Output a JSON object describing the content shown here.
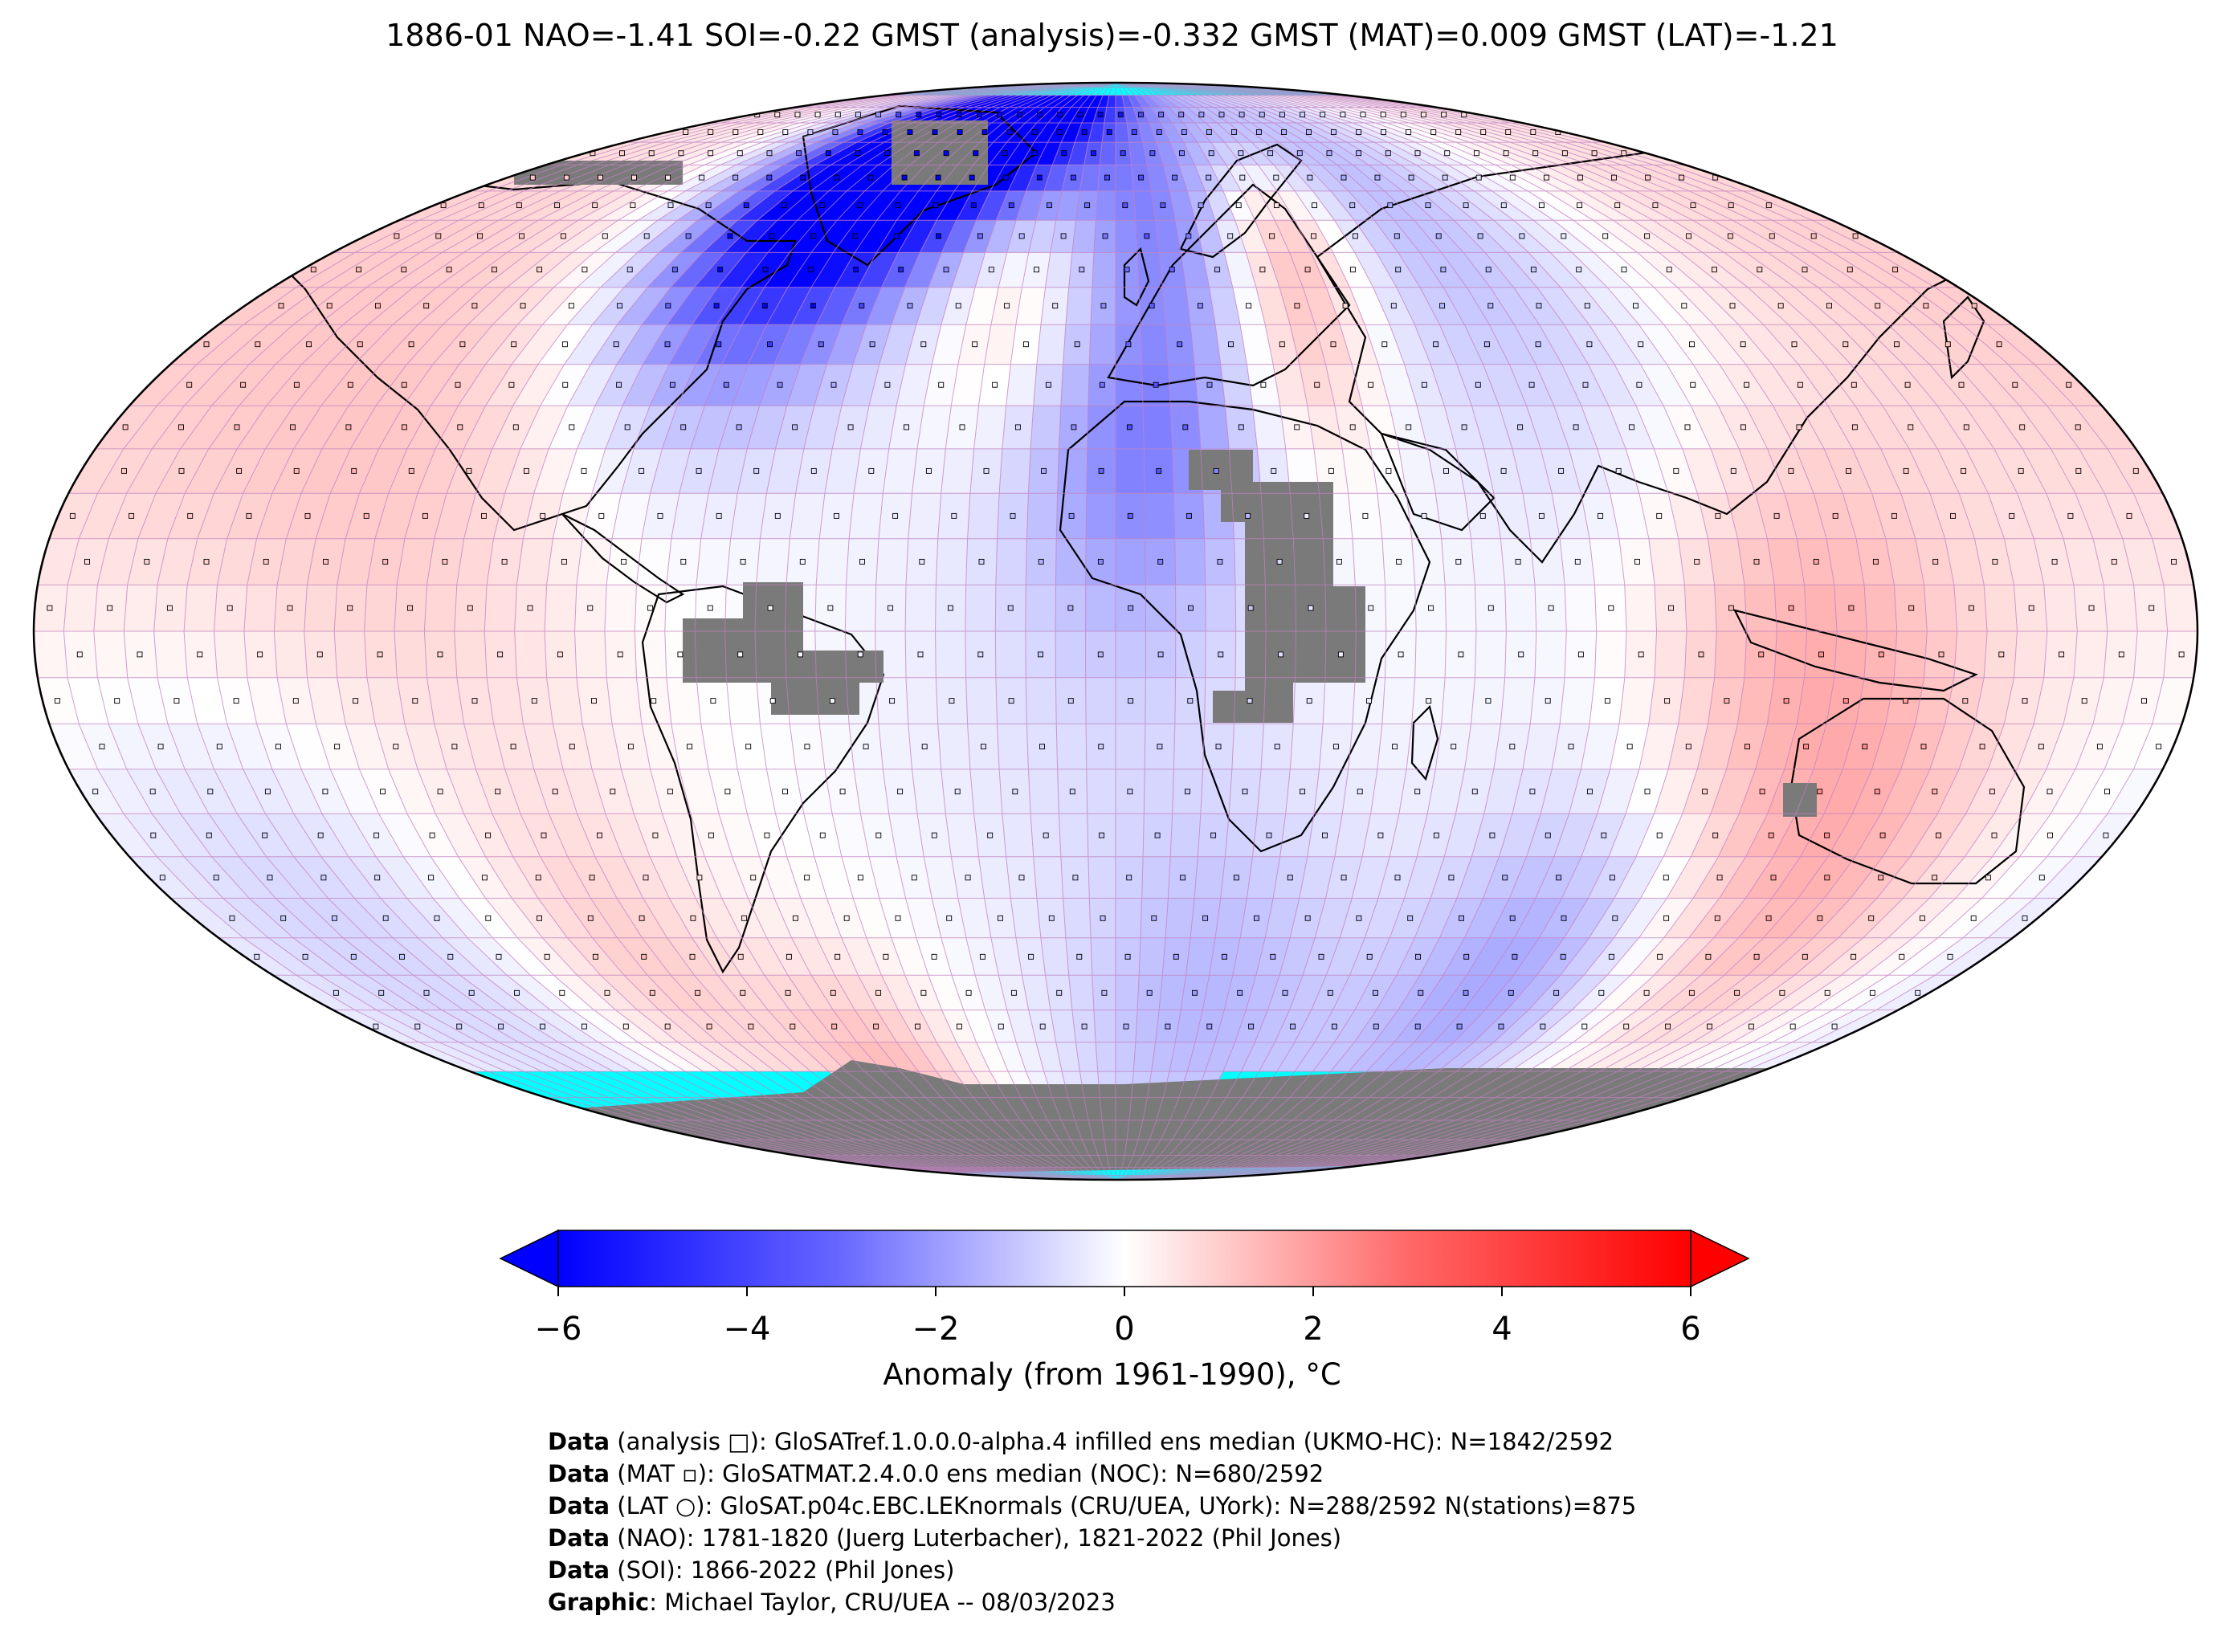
{
  "title": "1886-01 NAO=-1.41 SOI=-0.22 GMST (analysis)=-0.332 GMST (MAT)=0.009 GMST (LAT)=-1.21",
  "colorbar": {
    "ticks": [
      "−6",
      "−4",
      "−2",
      "0",
      "2",
      "4",
      "6"
    ],
    "tick_values": [
      -6,
      -4,
      -2,
      0,
      2,
      4,
      6
    ],
    "label": "Anomaly (from 1961-1990), °C",
    "colors": {
      "min": "#0000ff",
      "mid": "#ffffff",
      "max": "#ff0000"
    }
  },
  "map": {
    "projection": "Robinson",
    "grid": "5-degree lat/lon cells",
    "ocean_ice_color": "#00ffff",
    "no_data_color": "#808080",
    "gridline_color": "#c080c0",
    "features": [
      "coastlines",
      "country borders",
      "station markers"
    ]
  },
  "credits": [
    {
      "bold": "Data",
      "text": " (analysis □): GloSATref.1.0.0.0-alpha.4 infilled ens median (UKMO-HC): N=1842/2592"
    },
    {
      "bold": "Data",
      "text": " (MAT ▫): GloSATMAT.2.4.0.0 ens median (NOC): N=680/2592"
    },
    {
      "bold": "Data",
      "text": " (LAT ○): GloSAT.p04c.EBC.LEKnormals (CRU/UEA, UYork): N=288/2592 N(stations)=875"
    },
    {
      "bold": "Data",
      "text": " (NAO): 1781-1820 (Juerg Luterbacher), 1821-2022 (Phil Jones)"
    },
    {
      "bold": "Data",
      "text": " (SOI): 1866-2022 (Phil Jones)"
    },
    {
      "bold": "Graphic",
      "text": ": Michael Taylor, CRU/UEA -- 08/03/2023"
    }
  ]
}
